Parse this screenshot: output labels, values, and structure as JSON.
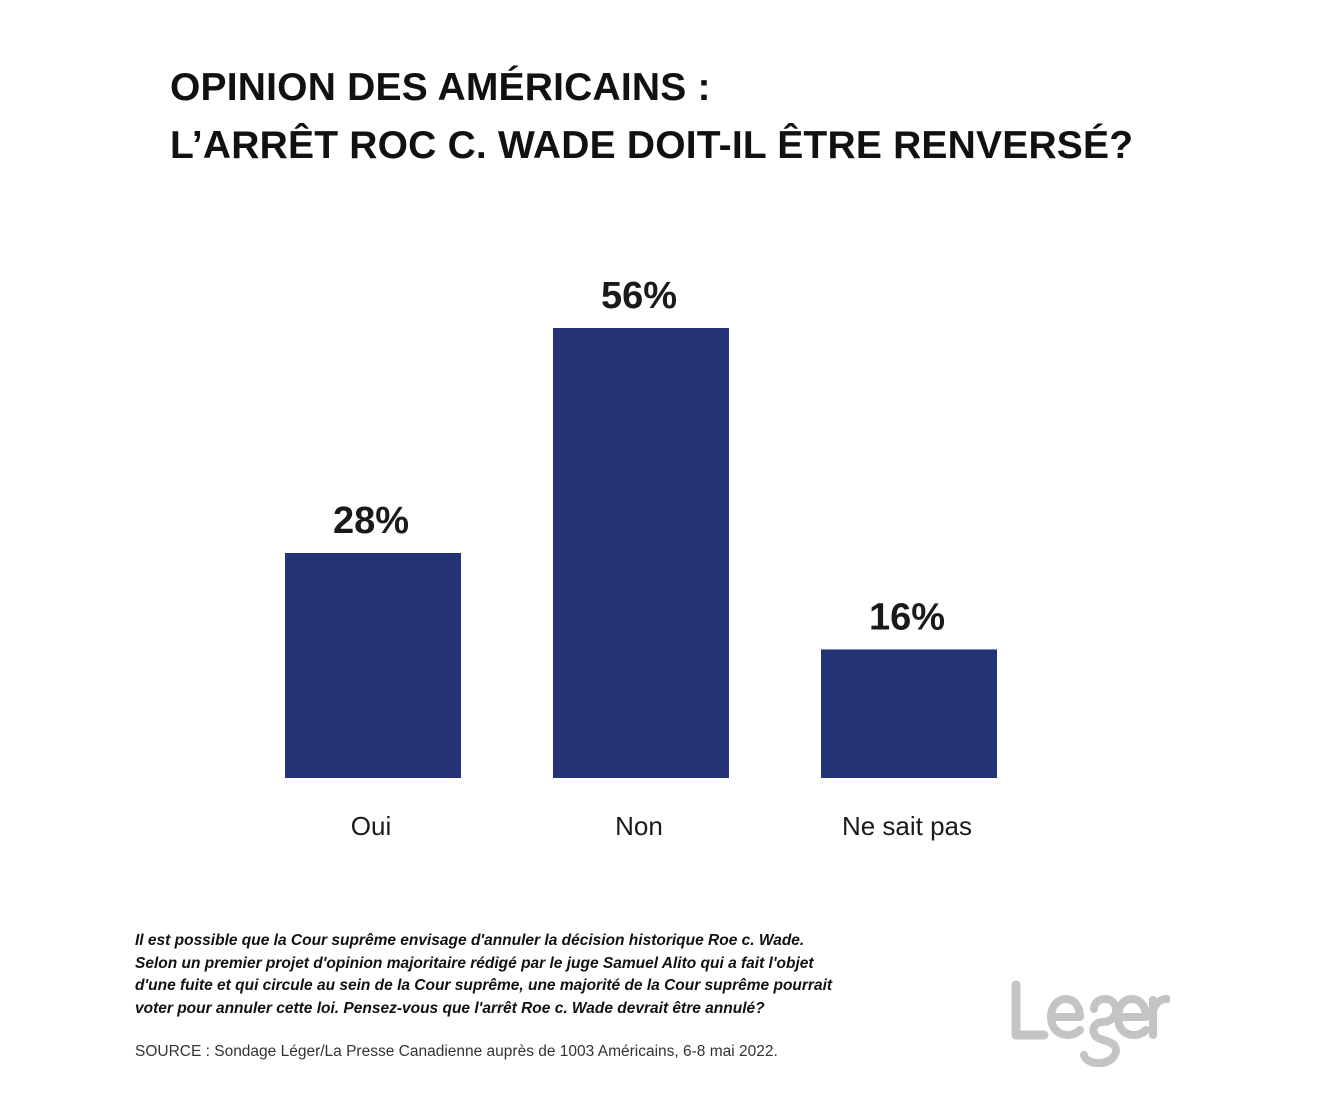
{
  "title": {
    "line1": "OPINION DES AMÉRICAINS :",
    "line2": "L’ARRÊT ROC C. WADE DOIT-IL ÊTRE RENVERSÉ?"
  },
  "colors": {
    "bar": "#233375",
    "logo": "#c4c4c4"
  },
  "chart_data": {
    "type": "bar",
    "title": "OPINION DES AMÉRICAINS : L’ARRÊT ROC C. WADE DOIT-IL ÊTRE RENVERSÉ?",
    "categories": [
      "Oui",
      "Non",
      "Ne sait pas"
    ],
    "values": [
      28,
      56,
      16
    ],
    "value_labels": [
      "28%",
      "56%",
      "16%"
    ],
    "unit": "%",
    "xlabel": "",
    "ylabel": "",
    "ylim": [
      0,
      56
    ],
    "grid": false,
    "legend": "none"
  },
  "question": {
    "lines": [
      "Il est possible que la Cour suprême envisage d'annuler la décision historique Roe c. Wade.",
      "Selon un premier projet d'opinion majoritaire rédigé par le juge Samuel Alito qui a fait l'objet",
      "d'une fuite et qui circule au sein de la Cour suprême, une majorité de la Cour suprême pourrait",
      "voter pour annuler cette loi. Pensez-vous que l'arrêt Roe c. Wade devrait être annulé?"
    ]
  },
  "source": "SOURCE : Sondage Léger/La Presse Canadienne auprès de 1003 Américains, 6-8 mai 2022.",
  "logo": {
    "text": "Leger",
    "icon": "leger-logo"
  }
}
